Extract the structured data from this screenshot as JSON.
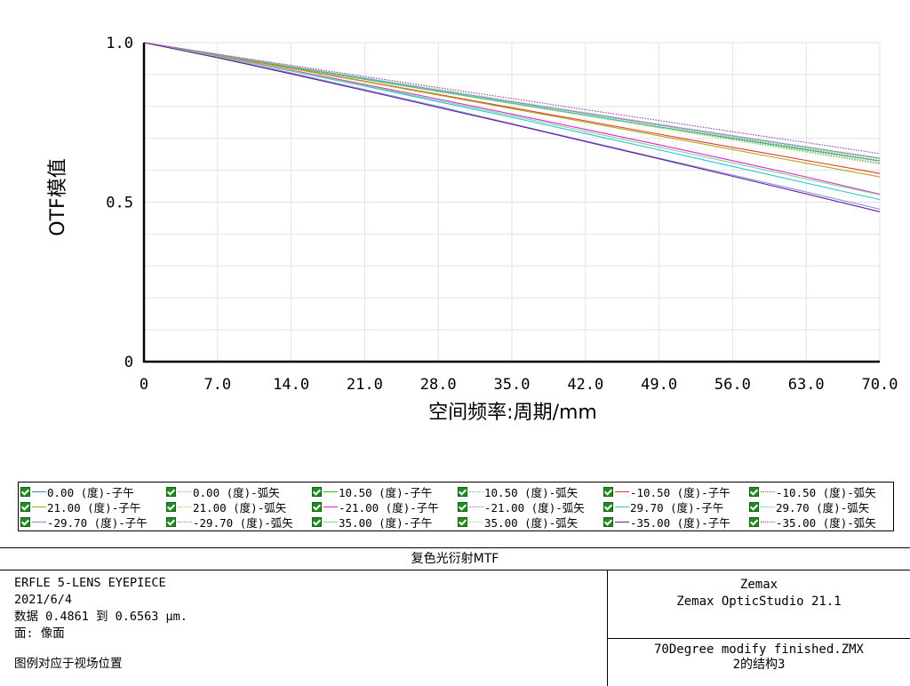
{
  "chart_data": {
    "type": "line",
    "xlabel": "空间频率:周期/mm",
    "ylabel": "OTF模值",
    "xlim": [
      0,
      70
    ],
    "ylim": [
      0,
      1
    ],
    "x_ticks": [
      "0",
      "7.0",
      "14.0",
      "21.0",
      "28.0",
      "35.0",
      "42.0",
      "49.0",
      "56.0",
      "63.0",
      "70.0"
    ],
    "y_ticks": [
      "0",
      "0.5",
      "1.0"
    ],
    "grid": true,
    "series": [
      {
        "name": "0.00 (度)-子午",
        "color": "#4a7fd6",
        "dash": "solid",
        "x": [
          0,
          7,
          14,
          21,
          28,
          35,
          42,
          49,
          56,
          63,
          70
        ],
        "y": [
          1.0,
          0.962,
          0.925,
          0.888,
          0.851,
          0.815,
          0.779,
          0.743,
          0.708,
          0.673,
          0.638
        ]
      },
      {
        "name": "0.00 (度)-弧矢",
        "color": "#9aa6e6",
        "dash": "dot",
        "x": [
          0,
          7,
          14,
          21,
          28,
          35,
          42,
          49,
          56,
          63,
          70
        ],
        "y": [
          1.0,
          0.962,
          0.925,
          0.888,
          0.851,
          0.815,
          0.779,
          0.743,
          0.708,
          0.673,
          0.638
        ]
      },
      {
        "name": "10.50 (度)-子午",
        "color": "#22c322",
        "dash": "solid",
        "x": [
          0,
          7,
          14,
          21,
          28,
          35,
          42,
          49,
          56,
          63,
          70
        ],
        "y": [
          1.0,
          0.961,
          0.923,
          0.885,
          0.847,
          0.81,
          0.773,
          0.736,
          0.7,
          0.664,
          0.629
        ]
      },
      {
        "name": "10.50 (度)-弧矢",
        "color": "#66dd66",
        "dash": "dot",
        "x": [
          0,
          7,
          14,
          21,
          28,
          35,
          42,
          49,
          56,
          63,
          70
        ],
        "y": [
          1.0,
          0.962,
          0.925,
          0.887,
          0.85,
          0.813,
          0.777,
          0.741,
          0.705,
          0.67,
          0.635
        ]
      },
      {
        "name": "-10.50 (度)-子午",
        "color": "#e03a2a",
        "dash": "solid",
        "x": [
          0,
          7,
          14,
          21,
          28,
          35,
          42,
          49,
          56,
          63,
          70
        ],
        "y": [
          1.0,
          0.96,
          0.92,
          0.879,
          0.838,
          0.796,
          0.755,
          0.713,
          0.672,
          0.631,
          0.59
        ]
      },
      {
        "name": "-10.50 (度)-弧矢",
        "color": "#e05050",
        "dash": "dot",
        "x": [
          0,
          7,
          14,
          21,
          28,
          35,
          42,
          49,
          56,
          63,
          70
        ],
        "y": [
          1.0,
          0.962,
          0.924,
          0.886,
          0.848,
          0.81,
          0.772,
          0.734,
          0.696,
          0.659,
          0.621
        ]
      },
      {
        "name": "21.00 (度)-子午",
        "color": "#b0a81a",
        "dash": "solid",
        "x": [
          0,
          7,
          14,
          21,
          28,
          35,
          42,
          49,
          56,
          63,
          70
        ],
        "y": [
          1.0,
          0.96,
          0.919,
          0.878,
          0.836,
          0.793,
          0.751,
          0.708,
          0.665,
          0.622,
          0.579
        ]
      },
      {
        "name": "21.00 (度)-弧矢",
        "color": "#c8c040",
        "dash": "dot",
        "x": [
          0,
          7,
          14,
          21,
          28,
          35,
          42,
          49,
          56,
          63,
          70
        ],
        "y": [
          1.0,
          0.962,
          0.924,
          0.886,
          0.847,
          0.809,
          0.771,
          0.733,
          0.695,
          0.657,
          0.619
        ]
      },
      {
        "name": "-21.00 (度)-子午",
        "color": "#e020e0",
        "dash": "solid",
        "x": [
          0,
          7,
          14,
          21,
          28,
          35,
          42,
          49,
          56,
          63,
          70
        ],
        "y": [
          1.0,
          0.958,
          0.914,
          0.869,
          0.823,
          0.776,
          0.728,
          0.68,
          0.63,
          0.579,
          0.525
        ]
      },
      {
        "name": "-21.00 (度)-弧矢",
        "color": "#e060e0",
        "dash": "dot",
        "x": [
          0,
          7,
          14,
          21,
          28,
          35,
          42,
          49,
          56,
          63,
          70
        ],
        "y": [
          1.0,
          0.963,
          0.926,
          0.889,
          0.852,
          0.815,
          0.778,
          0.741,
          0.704,
          0.667,
          0.63
        ]
      },
      {
        "name": "29.70 (度)-子午",
        "color": "#20c8d8",
        "dash": "solid",
        "x": [
          0,
          7,
          14,
          21,
          28,
          35,
          42,
          49,
          56,
          63,
          70
        ],
        "y": [
          1.0,
          0.957,
          0.911,
          0.864,
          0.815,
          0.766,
          0.715,
          0.664,
          0.612,
          0.56,
          0.508
        ]
      },
      {
        "name": "29.70 (度)-弧矢",
        "color": "#40d8e8",
        "dash": "dot",
        "x": [
          0,
          7,
          14,
          21,
          28,
          35,
          42,
          49,
          56,
          63,
          70
        ],
        "y": [
          1.0,
          0.962,
          0.924,
          0.886,
          0.848,
          0.81,
          0.772,
          0.735,
          0.697,
          0.66,
          0.623
        ]
      },
      {
        "name": "-29.70 (度)-子午",
        "color": "#7e8ed8",
        "dash": "solid",
        "x": [
          0,
          7,
          14,
          21,
          28,
          35,
          42,
          49,
          56,
          63,
          70
        ],
        "y": [
          1.0,
          0.955,
          0.905,
          0.853,
          0.8,
          0.746,
          0.692,
          0.638,
          0.585,
          0.532,
          0.478
        ]
      },
      {
        "name": "-29.70 (度)-弧矢",
        "color": "#8890c0",
        "dash": "dot",
        "x": [
          0,
          7,
          14,
          21,
          28,
          35,
          42,
          49,
          56,
          63,
          70
        ],
        "y": [
          1.0,
          0.963,
          0.927,
          0.89,
          0.854,
          0.817,
          0.781,
          0.745,
          0.709,
          0.673,
          0.637
        ]
      },
      {
        "name": "35.00 (度)-子午",
        "color": "#80d880",
        "dash": "solid",
        "x": [
          0,
          7,
          14,
          21,
          28,
          35,
          42,
          49,
          56,
          63,
          70
        ],
        "y": [
          1.0,
          0.957,
          0.912,
          0.866,
          0.819,
          0.771,
          0.722,
          0.673,
          0.623,
          0.573,
          0.523
        ]
      },
      {
        "name": "35.00 (度)-弧矢",
        "color": "#a0e0a0",
        "dash": "dot",
        "x": [
          0,
          7,
          14,
          21,
          28,
          35,
          42,
          49,
          56,
          63,
          70
        ],
        "y": [
          1.0,
          0.963,
          0.926,
          0.89,
          0.853,
          0.817,
          0.781,
          0.745,
          0.709,
          0.674,
          0.639
        ]
      },
      {
        "name": "-35.00 (度)-子午",
        "color": "#6a1aa0",
        "dash": "solid",
        "x": [
          0,
          7,
          14,
          21,
          28,
          35,
          42,
          49,
          56,
          63,
          70
        ],
        "y": [
          1.0,
          0.953,
          0.902,
          0.85,
          0.797,
          0.744,
          0.69,
          0.636,
          0.581,
          0.526,
          0.47
        ]
      },
      {
        "name": "-35.00 (度)-弧矢",
        "color": "#a03ab8",
        "dash": "dot",
        "x": [
          0,
          7,
          14,
          21,
          28,
          35,
          42,
          49,
          56,
          63,
          70
        ],
        "y": [
          1.0,
          0.964,
          0.929,
          0.894,
          0.859,
          0.825,
          0.79,
          0.756,
          0.721,
          0.687,
          0.652
        ]
      }
    ]
  },
  "footer": {
    "title": "复色光衍射MTF",
    "line1": "ERFLE 5-LENS EYEPIECE",
    "line2": "2021/6/4",
    "line3": "数据 0.4861 到 0.6563 μm.",
    "line4": "面: 像面",
    "line5": "图例对应于视场位置",
    "right_top_1": "Zemax",
    "right_top_2": "Zemax OpticStudio 21.1",
    "right_bottom_1": "70Degree modify finished.ZMX",
    "right_bottom_2": "2的结构3"
  }
}
